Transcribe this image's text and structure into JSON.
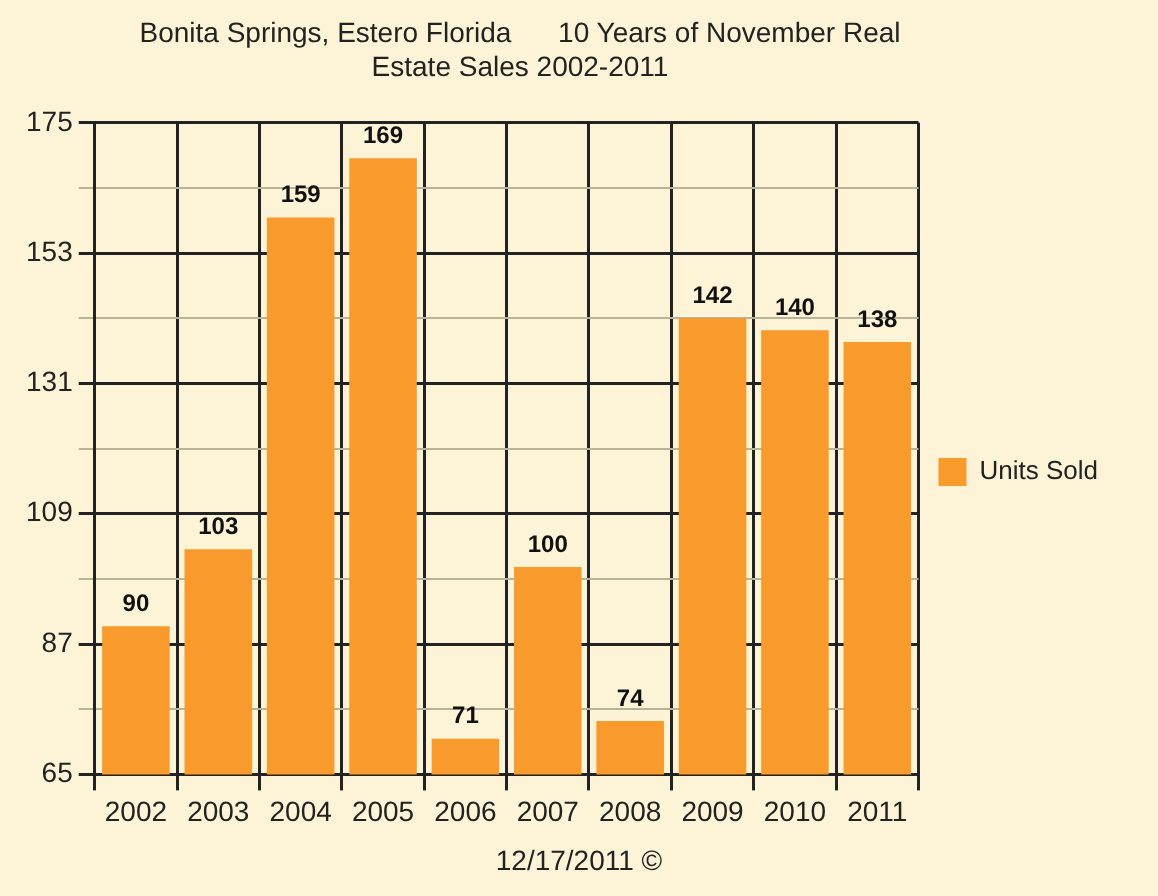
{
  "chart_data": {
    "type": "bar",
    "title": "Bonita Springs, Estero Florida      10 Years of November Real Estate Sales 2002-2011",
    "categories": [
      "2002",
      "2003",
      "2004",
      "2005",
      "2006",
      "2007",
      "2008",
      "2009",
      "2010",
      "2011"
    ],
    "series": [
      {
        "name": "Units Sold",
        "color": "#f89a2c",
        "values": [
          90,
          103,
          159,
          169,
          71,
          100,
          74,
          142,
          140,
          138
        ]
      }
    ],
    "ylim": [
      65,
      175
    ],
    "yticks": [
      65,
      {
        "value": 76,
        "label": null
      },
      87,
      {
        "value": 98,
        "label": null
      },
      109,
      {
        "value": 120,
        "label": null
      },
      131,
      {
        "value": 142,
        "label": null
      },
      153,
      {
        "value": 164,
        "label": null
      },
      175
    ],
    "grid": true,
    "legend": "right",
    "data_labels": true,
    "annotations": [
      "12/17/2011 ©"
    ]
  }
}
